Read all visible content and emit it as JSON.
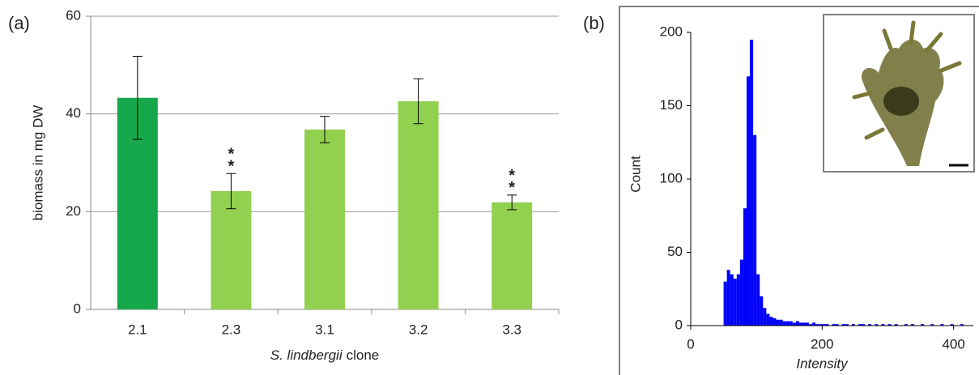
{
  "chart_data": [
    {
      "type": "bar",
      "panel_label": "(a)",
      "ylabel": "biomass in mg DW",
      "xlabel": [
        "S. lindbergii",
        "clone"
      ],
      "categories": [
        "2.1",
        "2.3",
        "3.1",
        "3.2",
        "3.3"
      ],
      "values": [
        43.3,
        24.2,
        36.8,
        42.6,
        21.9
      ],
      "errors": [
        8.5,
        3.6,
        2.7,
        4.6,
        1.5
      ],
      "colors": [
        "#17a84b",
        "#92d050",
        "#92d050",
        "#92d050",
        "#92d050"
      ],
      "annotations": [
        {
          "x": "2.3",
          "lines": [
            "*",
            "*"
          ]
        },
        {
          "x": "3.3",
          "lines": [
            "*",
            "*"
          ]
        }
      ],
      "ylim": [
        0,
        60
      ],
      "yticks": [
        0,
        20,
        40,
        60
      ],
      "grid": true
    },
    {
      "type": "histogram",
      "panel_label": "(b)",
      "xlabel": "Intensity",
      "ylabel": "Count",
      "color": "#0000ff",
      "bins": [
        50,
        55,
        60,
        65,
        70,
        75,
        80,
        85,
        90,
        95,
        100,
        105,
        110,
        115,
        120,
        125,
        130,
        135,
        140,
        145,
        150,
        155,
        160,
        165,
        170,
        175,
        180,
        185,
        190,
        195,
        200,
        205,
        210,
        215,
        220,
        225,
        230,
        235,
        240,
        245,
        250,
        255,
        260,
        265,
        270,
        275,
        280,
        285,
        290,
        295,
        300,
        305,
        310,
        315,
        320,
        325,
        330,
        335,
        340,
        345,
        350,
        355,
        360,
        365,
        370,
        375,
        380,
        385,
        390,
        395,
        400,
        405,
        410,
        415,
        420,
        425
      ],
      "counts": [
        30,
        38,
        35,
        32,
        35,
        45,
        80,
        170,
        195,
        130,
        35,
        20,
        12,
        8,
        6,
        5,
        4,
        4,
        3,
        3,
        3,
        2,
        3,
        2,
        2,
        2,
        1,
        2,
        1,
        1,
        1,
        1,
        0,
        1,
        1,
        0,
        1,
        1,
        0,
        1,
        0,
        1,
        1,
        0,
        1,
        0,
        1,
        0,
        1,
        0,
        1,
        0,
        1,
        0,
        0,
        1,
        0,
        1,
        0,
        0,
        1,
        0,
        0,
        1,
        0,
        0,
        1,
        0,
        0,
        1,
        0,
        0,
        1,
        0,
        0
      ],
      "xlim": [
        0,
        430
      ],
      "xticks": [
        0,
        200,
        400
      ],
      "ylim": [
        0,
        200
      ],
      "yticks": [
        0,
        50,
        100,
        150,
        200
      ],
      "grid": false
    }
  ]
}
